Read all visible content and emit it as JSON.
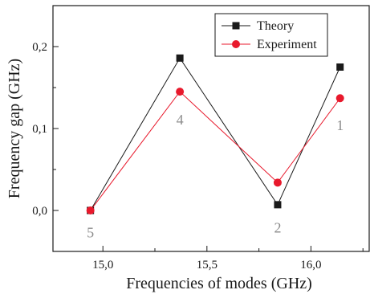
{
  "chart_data": {
    "type": "line",
    "xlabel": "Frequencies of modes (GHz)",
    "ylabel": "Frequency gap (GHz)",
    "xlim": [
      14.76,
      16.28
    ],
    "ylim": [
      -0.05,
      0.25
    ],
    "x_ticks": [
      {
        "value": 15.0,
        "label": "15,0"
      },
      {
        "value": 15.5,
        "label": "15,5"
      },
      {
        "value": 16.0,
        "label": "16,0"
      }
    ],
    "y_ticks": [
      {
        "value": 0.0,
        "label": "0,0"
      },
      {
        "value": 0.1,
        "label": "0,1"
      },
      {
        "value": 0.2,
        "label": "0,2"
      }
    ],
    "grid": false,
    "legend_position": "top-right",
    "series": [
      {
        "name": "Theory",
        "color": "#1a1a1a",
        "marker": "square",
        "points": [
          {
            "x": 14.94,
            "y": 0.0
          },
          {
            "x": 15.37,
            "y": 0.186
          },
          {
            "x": 15.84,
            "y": 0.007
          },
          {
            "x": 16.14,
            "y": 0.175
          }
        ]
      },
      {
        "name": "Experiment",
        "color": "#e8192c",
        "marker": "circle",
        "points": [
          {
            "x": 14.94,
            "y": 0.0
          },
          {
            "x": 15.37,
            "y": 0.145
          },
          {
            "x": 15.84,
            "y": 0.034
          },
          {
            "x": 16.14,
            "y": 0.137
          }
        ]
      }
    ],
    "annotations": [
      {
        "text": "5",
        "x": 14.94,
        "y": -0.027
      },
      {
        "text": "4",
        "x": 15.37,
        "y": 0.111
      },
      {
        "text": "2",
        "x": 15.84,
        "y": -0.021
      },
      {
        "text": "1",
        "x": 16.14,
        "y": 0.104
      }
    ]
  }
}
